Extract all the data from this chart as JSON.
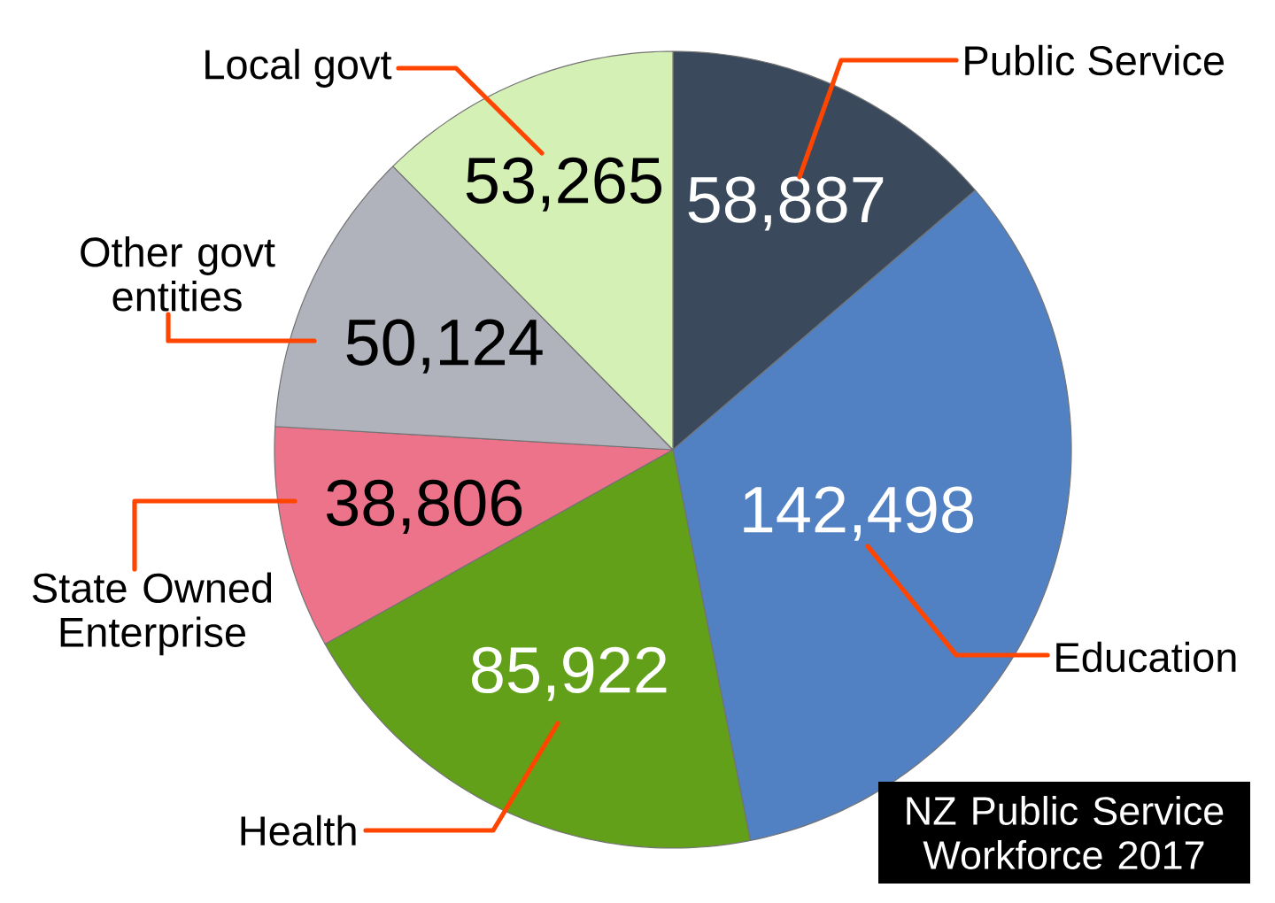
{
  "chart_data": {
    "type": "pie",
    "title": "NZ Public Service Workforce 2017",
    "categories": [
      "Public Service",
      "Education",
      "Health",
      "State Owned Enterprise",
      "Other govt entities",
      "Local govt"
    ],
    "values": [
      58887,
      142498,
      85922,
      38806,
      50124,
      53265
    ],
    "colors": [
      "#3a4a5c",
      "#5181c2",
      "#62a01a",
      "#ec738a",
      "#b0b2bc",
      "#d4f0b5"
    ],
    "value_labels": [
      "58,887",
      "142,498",
      "85,922",
      "38,806",
      "50,124",
      "53,265"
    ]
  }
}
